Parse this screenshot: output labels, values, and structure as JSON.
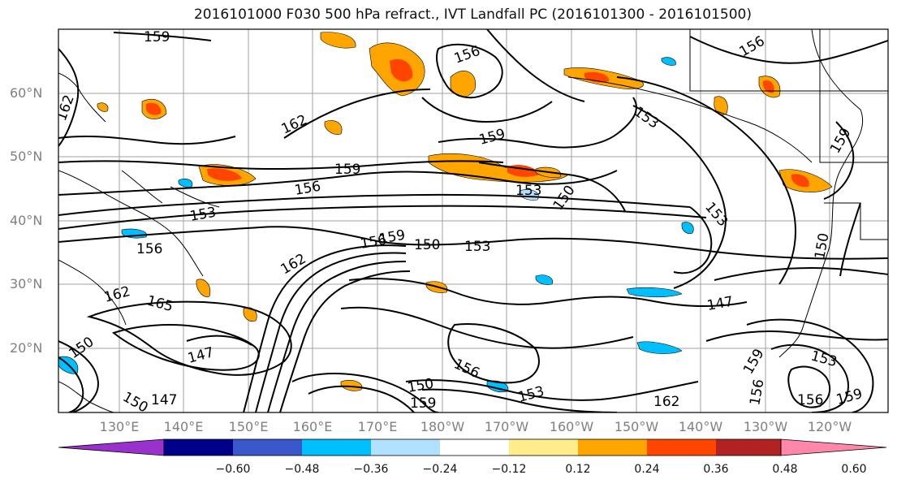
{
  "title": "2016101000 F030 500 hPa refract., IVT Landfall PC (2016101300 - 2016101500)",
  "lat_labels": [
    "60°N",
    "50°N",
    "40°N",
    "30°N",
    "20°N"
  ],
  "lon_labels": [
    "130°E",
    "140°E",
    "150°E",
    "160°E",
    "170°E",
    "180°W",
    "170°W",
    "160°W",
    "150°W",
    "140°W",
    "130°W",
    "120°W"
  ],
  "contour_labels": [
    "159",
    "156",
    "162",
    "162",
    "159",
    "156",
    "153",
    "159",
    "153",
    "150",
    "156",
    "159",
    "153",
    "156",
    "162",
    "156",
    "159",
    "153",
    "150",
    "153",
    "150",
    "147",
    "162",
    "165",
    "147",
    "150",
    "150",
    "147",
    "156",
    "150",
    "159",
    "153",
    "162",
    "156",
    "159",
    "153",
    "156",
    "159"
  ],
  "colorbar": {
    "colors": [
      "#9932cc",
      "#00008b",
      "#3a58cc",
      "#00bfff",
      "#b0e2ff",
      "#ffffff",
      "#ffec8b",
      "#ffa500",
      "#ff4500",
      "#b22222",
      "#ff88aa"
    ],
    "ticks": [
      "−0.60",
      "−0.48",
      "−0.36",
      "−0.24",
      "−0.12",
      "0.12",
      "0.24",
      "0.36",
      "0.48",
      "0.60"
    ],
    "extend": "both"
  },
  "colors": {
    "positive": "#ffa500",
    "strong_positive": "#ff4500",
    "negative": "#00bfff",
    "weak_negative": "#b0e2ff",
    "contour": "#000000"
  }
}
